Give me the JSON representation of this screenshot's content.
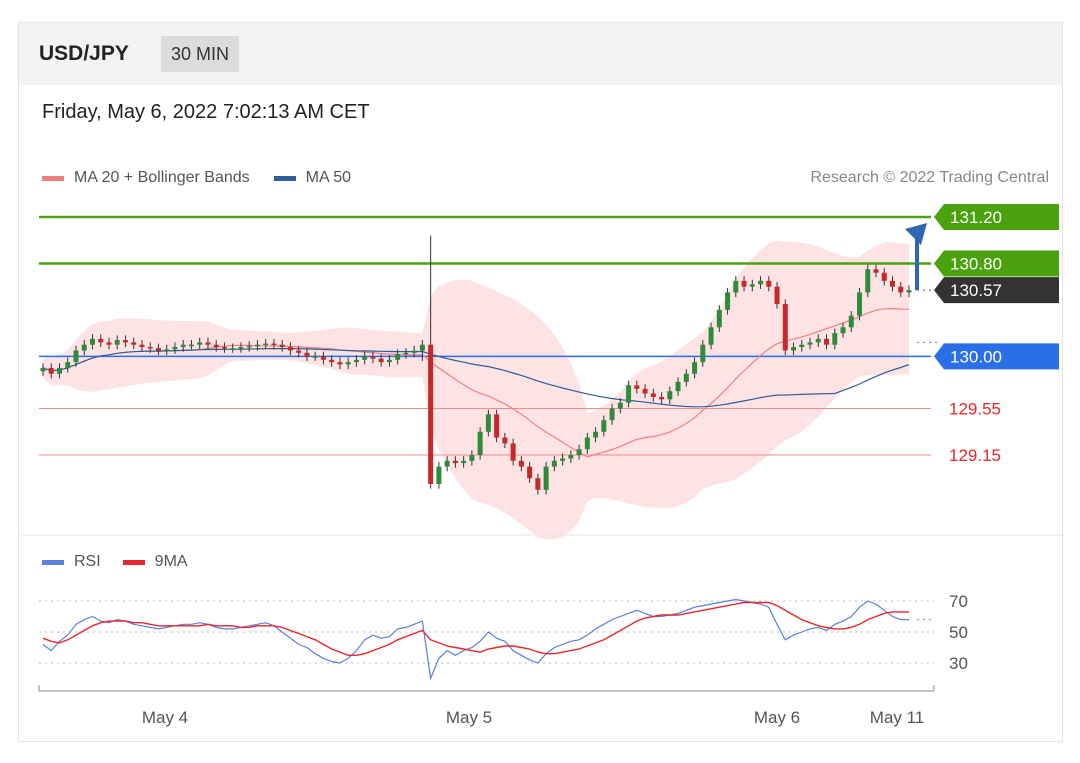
{
  "header": {
    "pair": "USD/JPY",
    "timeframe": "30 MIN"
  },
  "datetime": "Friday, May 6, 2022 7:02:13 AM CET",
  "legend": {
    "ma20": {
      "label": "MA 20 + Bollinger Bands",
      "color": "#f08080"
    },
    "ma50": {
      "label": "MA 50",
      "color": "#2f5d9b"
    },
    "rsi": {
      "label": "RSI",
      "color": "#5b7fdc"
    },
    "rsi_ma": {
      "label": "9MA",
      "color": "#e8262b"
    }
  },
  "research": "Research © 2022 Trading Central",
  "levels": [
    {
      "value": 131.2,
      "label": "131.20",
      "kind": "resistance",
      "color": "#4aa30e"
    },
    {
      "value": 130.8,
      "label": "130.80",
      "kind": "resistance",
      "color": "#4aa30e"
    },
    {
      "value": 130.57,
      "label": "130.57",
      "kind": "last",
      "color": "#333333"
    },
    {
      "value": 130.0,
      "label": "130.00",
      "kind": "pivot",
      "color": "#2a6ee8"
    },
    {
      "value": 129.55,
      "label": "129.55",
      "kind": "support",
      "color": "#e8262b"
    },
    {
      "value": 129.15,
      "label": "129.15",
      "kind": "support",
      "color": "#e8262b"
    }
  ],
  "chart_data": [
    {
      "type": "candlestick",
      "title": "USD/JPY 30 MIN",
      "ylim": [
        128.6,
        131.4
      ],
      "x_ticks": [
        "May 4",
        "May 5",
        "May 6",
        "May 11"
      ],
      "closes": [
        129.9,
        129.85,
        129.9,
        129.95,
        130.05,
        130.1,
        130.15,
        130.12,
        130.1,
        130.14,
        130.12,
        130.1,
        130.08,
        130.07,
        130.05,
        130.06,
        130.08,
        130.1,
        130.1,
        130.12,
        130.1,
        130.08,
        130.07,
        130.07,
        130.08,
        130.09,
        130.1,
        130.11,
        130.1,
        130.08,
        130.05,
        130.03,
        130.0,
        130.0,
        129.97,
        129.95,
        129.93,
        129.95,
        129.97,
        130.0,
        129.98,
        129.95,
        129.97,
        130.02,
        130.03,
        130.05,
        130.1,
        128.9,
        129.05,
        129.1,
        129.08,
        129.1,
        129.15,
        129.35,
        129.5,
        129.3,
        129.25,
        129.1,
        129.05,
        128.95,
        128.85,
        129.05,
        129.1,
        129.12,
        129.15,
        129.2,
        129.3,
        129.35,
        129.45,
        129.55,
        129.6,
        129.75,
        129.72,
        129.68,
        129.65,
        129.63,
        129.7,
        129.78,
        129.85,
        129.95,
        130.1,
        130.25,
        130.4,
        130.55,
        130.65,
        130.6,
        130.62,
        130.65,
        130.6,
        130.45,
        130.05,
        130.08,
        130.1,
        130.12,
        130.15,
        130.1,
        130.2,
        130.25,
        130.35,
        130.55,
        130.75,
        130.72,
        130.65,
        130.6,
        130.55,
        130.57
      ],
      "series": [
        {
          "name": "MA 20 + Bollinger Bands"
        },
        {
          "name": "MA 50"
        }
      ]
    },
    {
      "type": "line",
      "yticks": [
        30,
        50,
        70
      ],
      "series": [
        {
          "name": "RSI",
          "values": [
            42,
            38,
            44,
            48,
            55,
            58,
            60,
            57,
            56,
            58,
            57,
            55,
            54,
            53,
            52,
            53,
            54,
            55,
            55,
            56,
            55,
            53,
            52,
            52,
            53,
            54,
            55,
            56,
            54,
            50,
            46,
            42,
            40,
            36,
            33,
            31,
            30,
            33,
            38,
            45,
            48,
            46,
            47,
            52,
            53,
            55,
            57,
            20,
            33,
            38,
            35,
            38,
            40,
            44,
            50,
            46,
            44,
            38,
            35,
            32,
            30,
            36,
            40,
            42,
            44,
            45,
            48,
            52,
            55,
            58,
            60,
            62,
            64,
            62,
            60,
            60,
            61,
            62,
            64,
            66,
            67,
            68,
            69,
            70,
            71,
            70,
            69,
            68,
            66,
            55,
            45,
            48,
            50,
            52,
            53,
            51,
            55,
            57,
            60,
            66,
            70,
            68,
            64,
            60,
            58,
            58
          ]
        },
        {
          "name": "9MA",
          "values": [
            46,
            44,
            43,
            45,
            48,
            51,
            54,
            56,
            57,
            57,
            57,
            56,
            56,
            55,
            54,
            54,
            54,
            54,
            54,
            54,
            55,
            54,
            54,
            54,
            53,
            53,
            54,
            54,
            54,
            53,
            51,
            49,
            47,
            45,
            42,
            39,
            37,
            35,
            35,
            36,
            38,
            40,
            42,
            45,
            47,
            49,
            51,
            45,
            43,
            41,
            40,
            39,
            38,
            37,
            39,
            40,
            41,
            41,
            40,
            39,
            37,
            36,
            36,
            37,
            38,
            39,
            41,
            43,
            45,
            48,
            51,
            54,
            57,
            59,
            60,
            61,
            61,
            61,
            62,
            63,
            64,
            65,
            66,
            67,
            68,
            69,
            69,
            69,
            69,
            67,
            64,
            61,
            58,
            56,
            54,
            53,
            52,
            52,
            53,
            55,
            58,
            60,
            62,
            63,
            63,
            63
          ]
        }
      ]
    }
  ]
}
